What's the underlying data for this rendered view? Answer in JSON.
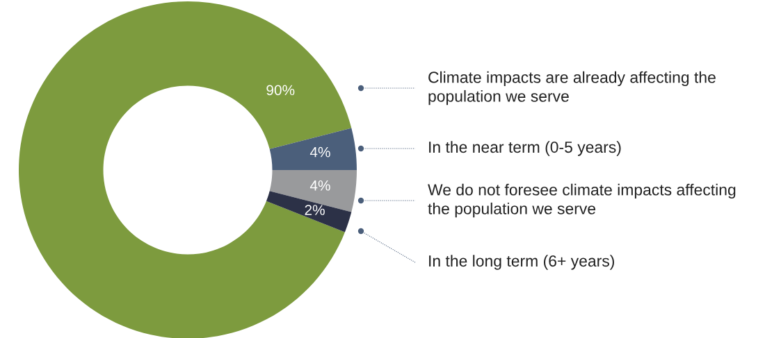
{
  "chart_data": {
    "type": "donut",
    "categories": [
      "Climate impacts are already affecting the population we serve",
      "In the near term (0-5 years)",
      "We do not foresee climate impacts affecting the population we serve",
      "In the long term (6+ years)"
    ],
    "values": [
      90,
      4,
      4,
      2
    ],
    "colors": [
      "#7d9b3e",
      "#4b5f7b",
      "#999a9c",
      "#2c3147"
    ],
    "value_labels": [
      "90%",
      "4%",
      "4%",
      "2%"
    ]
  }
}
